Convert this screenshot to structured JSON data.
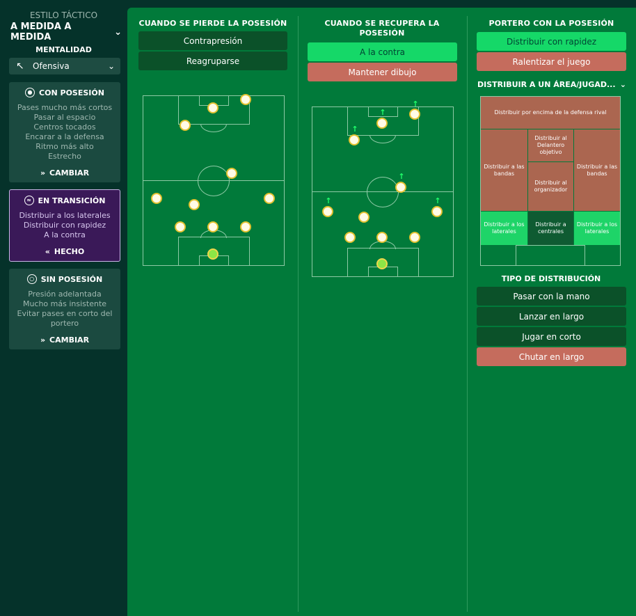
{
  "sidebar": {
    "style_label": "ESTILO TÁCTICO",
    "style_value": "A MEDIDA A MEDIDA",
    "mentality_label": "MENTALIDAD",
    "mentality_value": "Ofensiva",
    "cards": [
      {
        "title": "CON POSESIÓN",
        "lines": [
          "Pases mucho más cortos",
          "Pasar al espacio",
          "Centros tocados",
          "Encarar a la defensa",
          "Ritmo más alto",
          "Estrecho"
        ],
        "button": "CAMBIAR"
      },
      {
        "title": "EN TRANSICIÓN",
        "lines": [
          "Distribuir a los laterales",
          "Distribuir con rapidez",
          "A la contra"
        ],
        "button": "HECHO"
      },
      {
        "title": "SIN POSESIÓN",
        "lines": [
          "Presión adelantada",
          "Mucho más insistente",
          "Evitar pases en corto del",
          "portero"
        ],
        "button": "CAMBIAR"
      }
    ]
  },
  "col1": {
    "title": "CUANDO SE PIERDE LA POSESIÓN",
    "options": [
      "Contrapresión",
      "Reagruparse"
    ]
  },
  "col2": {
    "title_line1": "CUANDO SE RECUPERA LA",
    "title_line2": "POSESIÓN",
    "options": [
      "A la contra",
      "Mantener dibujo"
    ]
  },
  "col3": {
    "title": "PORTERO CON LA POSESIÓN",
    "options": [
      "Distribuir con rapidez",
      "Ralentizar el juego"
    ],
    "area_title": "DISTRIBUIR A UN ÁREA/JUGAD...",
    "zones": {
      "top": "Distribuir por encima de la defensa rival",
      "left_wide": "Distribuir a las bandas",
      "center_target": "Distribuir al Delantero objetivo",
      "right_wide": "Distribuir a las bandas",
      "center_playmaker": "Distribuir al organizador",
      "left_back": "Distribuir a los laterales",
      "center_backs": "Distribuir a centrales",
      "right_back": "Distribuir a los laterales"
    },
    "distribution_title": "TIPO DE DISTRIBUCIÓN",
    "distribution_options": [
      "Pasar con la mano",
      "Lanzar en largo",
      "Jugar en corto",
      "Chutar en largo"
    ]
  },
  "colors": {
    "selected_green": "#15d868",
    "selected_salmon": "#c56c5d",
    "option_dark": "#0b5129",
    "pitch": "#017a3a",
    "sidebar": "#05322a",
    "transition_card": "#3a1958"
  },
  "icons": [
    "chevron-down-icon",
    "arrow-diagonal-icon",
    "football-icon",
    "transition-icon",
    "shield-icon",
    "double-chevron-right-icon",
    "double-chevron-left-icon"
  ]
}
